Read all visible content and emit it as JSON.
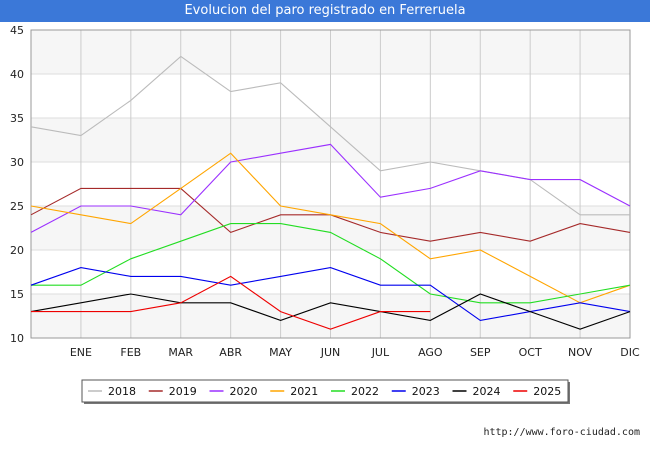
{
  "title": "Evolucion del paro registrado en Ferreruela",
  "footer": "http://www.foro-ciudad.com",
  "chart_data": {
    "type": "line",
    "x_labels": [
      "",
      "ENE",
      "FEB",
      "MAR",
      "ABR",
      "MAY",
      "JUN",
      "JUL",
      "AGO",
      "SEP",
      "OCT",
      "NOV",
      "DIC"
    ],
    "ylim": [
      10,
      45
    ],
    "yticks": [
      10,
      15,
      20,
      25,
      30,
      35,
      40,
      45
    ],
    "grid": true,
    "legend_position": "bottom",
    "series": [
      {
        "name": "2018",
        "color": "#bbbbbb",
        "values": [
          34,
          33,
          37,
          42,
          38,
          39,
          34,
          29,
          30,
          29,
          28,
          24,
          24
        ]
      },
      {
        "name": "2019",
        "color": "#a52a2a",
        "values": [
          24,
          27,
          27,
          27,
          22,
          24,
          24,
          22,
          21,
          22,
          21,
          23,
          22
        ]
      },
      {
        "name": "2020",
        "color": "#9b30ff",
        "values": [
          22,
          25,
          25,
          24,
          30,
          31,
          32,
          26,
          27,
          29,
          28,
          28,
          25
        ]
      },
      {
        "name": "2021",
        "color": "#ffa500",
        "values": [
          25,
          24,
          23,
          27,
          31,
          25,
          24,
          23,
          19,
          20,
          17,
          14,
          16
        ]
      },
      {
        "name": "2022",
        "color": "#22dd22",
        "values": [
          16,
          16,
          19,
          21,
          23,
          23,
          22,
          19,
          15,
          14,
          14,
          15,
          16
        ]
      },
      {
        "name": "2023",
        "color": "#0000ee",
        "values": [
          16,
          18,
          17,
          17,
          16,
          17,
          18,
          16,
          16,
          12,
          13,
          14,
          13
        ]
      },
      {
        "name": "2024",
        "color": "#000000",
        "values": [
          13,
          14,
          15,
          14,
          14,
          12,
          14,
          13,
          12,
          15,
          13,
          11,
          13
        ]
      },
      {
        "name": "2025",
        "color": "#ee0000",
        "values": [
          13,
          13,
          13,
          14,
          17,
          13,
          11,
          13,
          13
        ]
      }
    ]
  }
}
